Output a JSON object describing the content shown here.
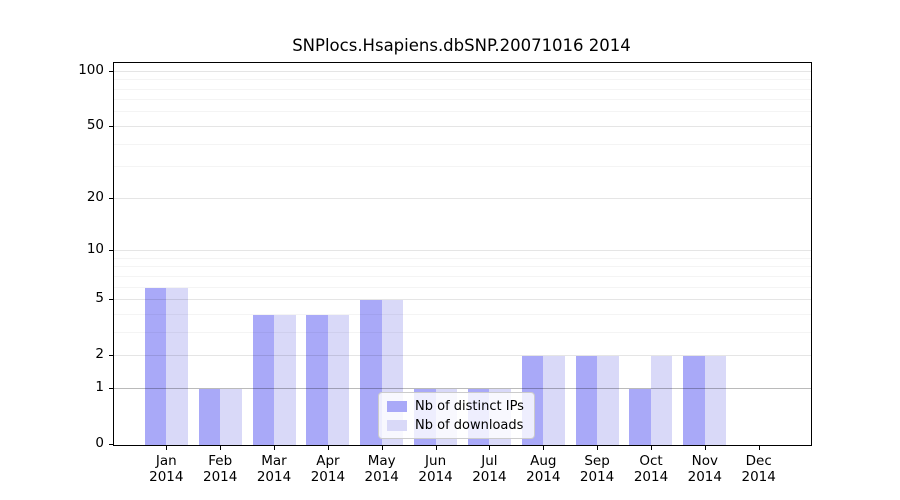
{
  "figure": {
    "title": "SNPlocs.Hsapiens.dbSNP.20071016 2014",
    "background_color": "#ffffff"
  },
  "chart_data": {
    "type": "bar",
    "title": "SNPlocs.Hsapiens.dbSNP.20071016 2014",
    "scale": "log1p",
    "grid": "on",
    "legend_position": "lower-center-inside",
    "categories": [
      {
        "month": "Jan",
        "year": "2014"
      },
      {
        "month": "Feb",
        "year": "2014"
      },
      {
        "month": "Mar",
        "year": "2014"
      },
      {
        "month": "Apr",
        "year": "2014"
      },
      {
        "month": "May",
        "year": "2014"
      },
      {
        "month": "Jun",
        "year": "2014"
      },
      {
        "month": "Jul",
        "year": "2014"
      },
      {
        "month": "Aug",
        "year": "2014"
      },
      {
        "month": "Sep",
        "year": "2014"
      },
      {
        "month": "Oct",
        "year": "2014"
      },
      {
        "month": "Nov",
        "year": "2014"
      },
      {
        "month": "Dec",
        "year": "2014"
      }
    ],
    "series": [
      {
        "name": "Nb of distinct IPs",
        "color": "#a9a9f8",
        "values": [
          6,
          1,
          4,
          4,
          5,
          1,
          1,
          2,
          2,
          1,
          2,
          0
        ]
      },
      {
        "name": "Nb of downloads",
        "color": "#d9d9f8",
        "values": [
          6,
          1,
          4,
          4,
          5,
          1,
          1,
          2,
          2,
          2,
          2,
          0
        ]
      }
    ],
    "xlabel": "",
    "ylabel": "",
    "ylim": [
      0,
      112
    ],
    "y_ticks": [
      0,
      1,
      2,
      5,
      10,
      20,
      50,
      100
    ],
    "y_minor_gridlines": [
      3,
      4,
      6,
      7,
      8,
      9,
      30,
      40,
      60,
      70,
      80,
      90
    ],
    "emphasized_gridline": 1
  },
  "legend": {
    "items": [
      {
        "label": "Nb of distinct IPs",
        "color": "#a9a9f8"
      },
      {
        "label": "Nb of downloads",
        "color": "#d9d9f8"
      }
    ]
  }
}
